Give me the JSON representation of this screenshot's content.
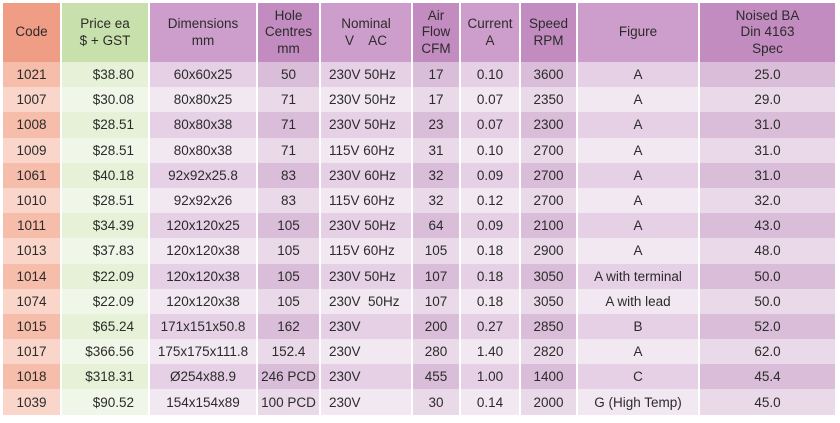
{
  "palette": {
    "text": "#2b2b2b",
    "page_bg": "#ffffff",
    "code_header": "#f09d85",
    "code_odd": "#f6bdab",
    "code_even": "#fad6ca",
    "price_header": "#c8e0ab",
    "price_odd": "#e6f1d8",
    "price_even": "#f0f7e9",
    "plight_header": "#cd9ecc",
    "plight_odd": "#e5d0e5",
    "plight_even": "#f1e8f1",
    "pdark_header": "#c38cc0",
    "pdark_odd": "#dabed9",
    "pdark_even": "#ead9e9"
  },
  "table": {
    "columns": [
      {
        "key": "code",
        "label": "Code",
        "type": "code",
        "align": "center"
      },
      {
        "key": "price",
        "label": "Price ea\n$ + GST",
        "type": "price",
        "align": "right"
      },
      {
        "key": "dimensions",
        "label": "Dimensions\nmm",
        "type": "plight",
        "align": "center"
      },
      {
        "key": "hole-centres",
        "label": "Hole\nCentres\nmm",
        "type": "pdark",
        "align": "center"
      },
      {
        "key": "nominal",
        "label": "Nominal\nV    AC",
        "type": "plight",
        "align": "left"
      },
      {
        "key": "air-flow",
        "label": "Air\nFlow\nCFM",
        "type": "pdark",
        "align": "center"
      },
      {
        "key": "current",
        "label": "Current\nA",
        "type": "plight",
        "align": "center"
      },
      {
        "key": "speed",
        "label": "Speed\nRPM",
        "type": "pdark",
        "align": "center"
      },
      {
        "key": "figure",
        "label": "Figure",
        "type": "plight",
        "align": "center"
      },
      {
        "key": "noise",
        "label": "Noised BA\nDin 4163\nSpec",
        "type": "pdark",
        "align": "center"
      }
    ],
    "rows": [
      [
        "1021",
        "$38.80",
        "60x60x25",
        "50",
        "230V 50Hz",
        "17",
        "0.10",
        "3600",
        "A",
        "25.0"
      ],
      [
        "1007",
        "$30.08",
        "80x80x25",
        "71",
        "230V 50Hz",
        "17",
        "0.07",
        "2350",
        "A",
        "29.0"
      ],
      [
        "1008",
        "$28.51",
        "80x80x38",
        "71",
        "230V 50Hz",
        "23",
        "0.07",
        "2300",
        "A",
        "31.0"
      ],
      [
        "1009",
        "$28.51",
        "80x80x38",
        "71",
        "115V 60Hz",
        "31",
        "0.10",
        "2700",
        "A",
        "31.0"
      ],
      [
        "1061",
        "$40.18",
        "92x92x25.8",
        "83",
        "230V 60Hz",
        "32",
        "0.09",
        "2700",
        "A",
        "31.0"
      ],
      [
        "1010",
        "$28.51",
        "92x92x26",
        "83",
        "115V 60Hz",
        "32",
        "0.12",
        "2700",
        "A",
        "32.0"
      ],
      [
        "1011",
        "$34.39",
        "120x120x25",
        "105",
        "230V 50Hz",
        "64",
        "0.09",
        "2100",
        "A",
        "43.0"
      ],
      [
        "1013",
        "$37.83",
        "120x120x38",
        "105",
        "115V 60Hz",
        "105",
        "0.18",
        "2900",
        "A",
        "48.0"
      ],
      [
        "1014",
        "$22.09",
        "120x120x38",
        "105",
        "230V 50Hz",
        "107",
        "0.18",
        "3050",
        "A with terminal",
        "50.0"
      ],
      [
        "1074",
        "$22.09",
        "120x120x38",
        "105",
        "230V  50Hz",
        "107",
        "0.18",
        "3050",
        "A with lead",
        "50.0"
      ],
      [
        "1015",
        "$65.24",
        "171x151x50.8",
        "162",
        "230V",
        "200",
        "0.27",
        "2850",
        "B",
        "52.0"
      ],
      [
        "1017",
        "$366.56",
        "175x175x111.8",
        "152.4",
        "230V",
        "280",
        "1.40",
        "2820",
        "A",
        "62.0"
      ],
      [
        "1018",
        "$318.31",
        "Ø254x88.9",
        "246 PCD",
        "230V",
        "455",
        "1.00",
        "1400",
        "C",
        "45.4"
      ],
      [
        "1039",
        "$90.52",
        "154x154x89",
        "100 PCD",
        "230V",
        "30",
        "0.14",
        "2000",
        "G (High Temp)",
        "45.0"
      ]
    ]
  }
}
